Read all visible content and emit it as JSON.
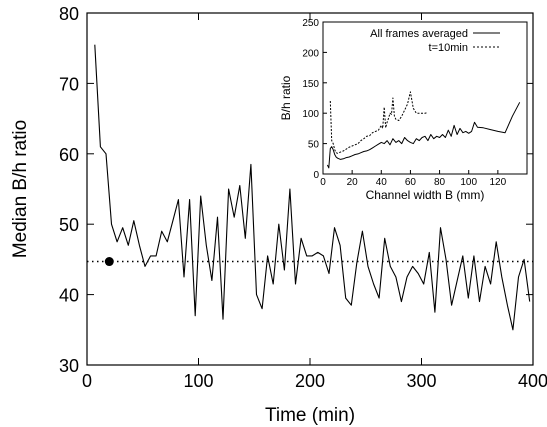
{
  "chart_data": [
    {
      "type": "line",
      "xlabel": "Time (min)",
      "ylabel": "Median B/h ratio",
      "xlim": [
        0,
        400
      ],
      "ylim": [
        30,
        80
      ],
      "xticks": [
        "0",
        "100",
        "200",
        "300",
        "400"
      ],
      "yticks": [
        "30",
        "40",
        "50",
        "60",
        "70",
        "80"
      ],
      "grid": false,
      "series": [
        {
          "x": [
            7,
            12,
            17,
            22,
            27,
            32,
            37,
            42,
            47,
            52,
            57,
            62,
            67,
            72,
            77,
            82,
            87,
            92,
            97,
            102,
            107,
            112,
            117,
            122,
            127,
            132,
            137,
            142,
            147,
            152,
            157,
            162,
            167,
            172,
            177,
            182,
            187,
            192,
            197,
            202,
            207,
            212,
            217,
            222,
            227,
            232,
            237,
            242,
            247,
            252,
            257,
            262,
            267,
            272,
            277,
            282,
            287,
            292,
            297,
            302,
            307,
            312,
            317,
            322,
            327,
            332,
            337,
            342,
            347,
            352,
            357,
            362,
            367,
            372,
            377,
            382,
            387,
            392,
            397
          ],
          "values": [
            75.5,
            61,
            60,
            50,
            47.5,
            49.5,
            47,
            50.5,
            47,
            44,
            45.5,
            45.5,
            49,
            47.5,
            50.5,
            53.5,
            42.5,
            53.5,
            37,
            54,
            47,
            42,
            51,
            36.5,
            55,
            51,
            55.5,
            48,
            58.5,
            40,
            38,
            45.5,
            41.5,
            50,
            43.5,
            55,
            41.5,
            48,
            45.5,
            45.5,
            46,
            45.5,
            43,
            49.5,
            47,
            39.5,
            38.5,
            44.5,
            49,
            44,
            41.5,
            39.5,
            48,
            44,
            42.5,
            39,
            42.5,
            44,
            43,
            41.5,
            46,
            37.5,
            49.5,
            45,
            38.5,
            42,
            45.5,
            39.5,
            45.5,
            39,
            44,
            41.5,
            47.5,
            42.5,
            38.5,
            35,
            42.5,
            45,
            39
          ]
        }
      ],
      "reference_line": {
        "y": 44.7,
        "style": "dotted"
      },
      "marker": {
        "x": 20,
        "y": 44.7
      }
    },
    {
      "type": "line",
      "xlabel": "Channel width B (mm)",
      "ylabel": "B/h ratio",
      "xlim": [
        0,
        140
      ],
      "ylim": [
        0,
        250
      ],
      "xticks": [
        "0",
        "20",
        "40",
        "60",
        "80",
        "100",
        "120"
      ],
      "yticks": [
        "0",
        "50",
        "100",
        "150",
        "200",
        "250"
      ],
      "legend_position": "top-right",
      "series": [
        {
          "name": "All frames averaged",
          "style": "solid",
          "x": [
            3,
            4,
            5,
            6,
            7,
            8,
            9,
            10,
            12,
            14,
            16,
            18,
            20,
            22,
            24,
            26,
            28,
            30,
            32,
            34,
            36,
            38,
            40,
            42,
            44,
            46,
            48,
            50,
            52,
            54,
            56,
            58,
            60,
            62,
            64,
            66,
            68,
            70,
            72,
            74,
            76,
            78,
            80,
            82,
            84,
            86,
            88,
            90,
            92,
            94,
            96,
            98,
            100,
            102,
            104,
            106,
            110,
            115,
            120,
            125,
            130,
            135
          ],
          "values": [
            15,
            10,
            42,
            45,
            40,
            32,
            28,
            26,
            24,
            25,
            27,
            28,
            30,
            32,
            33,
            35,
            37,
            38,
            40,
            43,
            46,
            49,
            52,
            50,
            55,
            48,
            58,
            52,
            55,
            50,
            60,
            55,
            52,
            50,
            58,
            55,
            60,
            62,
            55,
            65,
            58,
            62,
            60,
            65,
            60,
            72,
            62,
            80,
            65,
            75,
            68,
            70,
            67,
            70,
            85,
            77,
            76,
            73,
            70,
            68,
            95,
            118
          ]
        },
        {
          "name": "t=10min",
          "style": "dashed",
          "x": [
            5,
            6,
            7,
            8,
            9,
            10,
            12,
            14,
            16,
            18,
            20,
            22,
            24,
            26,
            28,
            30,
            32,
            34,
            36,
            38,
            40,
            41,
            42,
            43,
            44,
            45,
            46,
            47,
            48,
            49,
            50,
            52,
            54,
            56,
            58,
            60,
            62,
            64,
            66,
            68,
            70,
            72
          ],
          "values": [
            120,
            55,
            50,
            40,
            35,
            34,
            36,
            38,
            41,
            44,
            46,
            48,
            50,
            55,
            58,
            62,
            63,
            68,
            70,
            72,
            80,
            75,
            110,
            76,
            85,
            92,
            100,
            98,
            125,
            95,
            90,
            88,
            95,
            105,
            115,
            135,
            108,
            100,
            100,
            100,
            100,
            101
          ]
        }
      ]
    }
  ]
}
